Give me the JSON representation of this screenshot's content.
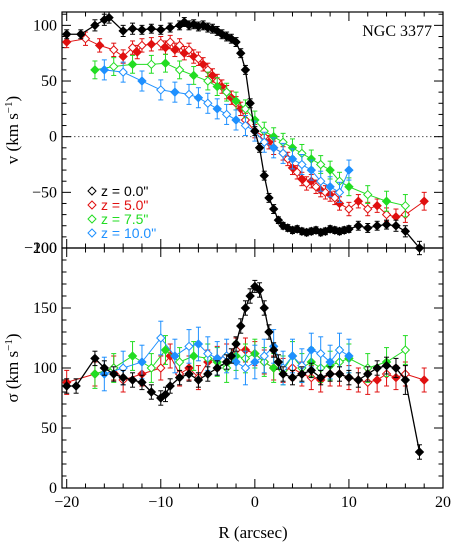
{
  "chart_data": {
    "type": "line",
    "title": "NGC 3377",
    "xlabel": "R (arcsec)",
    "xlim": [
      -20.5,
      20
    ],
    "x_ticks": [
      "−20",
      "−10",
      "0",
      "10",
      "20"
    ],
    "x_tick_values": [
      -20,
      -10,
      0,
      10,
      20
    ],
    "legend_position": "bottom-left of top panel",
    "panels": [
      {
        "id": "velocity",
        "ylabel": "v (km s",
        "ylabel_sup": "−1",
        "ylabel_close": ")",
        "ylim": [
          -100,
          112
        ],
        "y_ticks": [
          "100",
          "50",
          "0",
          "−50",
          "−100"
        ],
        "y_tick_values": [
          100,
          50,
          0,
          -50,
          -100
        ],
        "reference_line": 0,
        "series": [
          {
            "name": "z = 0.0\"",
            "color": "#000000",
            "marker": "diamond-filled",
            "x": [
              -20,
              -18.5,
              -17,
              -16,
              -15.5,
              -14,
              -13,
              -12,
              -11,
              -10,
              -9,
              -8,
              -7.5,
              -7,
              -6.5,
              -6,
              -5.5,
              -5,
              -4.5,
              -4,
              -3.5,
              -3,
              -2.5,
              -2,
              -1.5,
              -1,
              -0.5,
              0,
              0.5,
              1,
              1.5,
              2,
              2.5,
              3,
              3.5,
              4,
              4.5,
              5,
              5.5,
              6,
              6.5,
              7,
              7.5,
              8,
              8.5,
              9,
              9.5,
              10,
              11,
              12,
              13,
              14,
              15,
              16,
              17.5
            ],
            "y": [
              92,
              92,
              100,
              105,
              107,
              95,
              97,
              96,
              97,
              96,
              98,
              100,
              103,
              100,
              101,
              99,
              100,
              98,
              97,
              95,
              92,
              90,
              88,
              85,
              75,
              60,
              30,
              5,
              -10,
              -35,
              -55,
              -65,
              -75,
              -80,
              -82,
              -84,
              -83,
              -85,
              -86,
              -85,
              -84,
              -86,
              -85,
              -83,
              -84,
              -85,
              -84,
              -83,
              -80,
              -82,
              -80,
              -79,
              -80,
              -85,
              -100
            ],
            "yerr": [
              4,
              4,
              5,
              5,
              5,
              5,
              5,
              4,
              4,
              4,
              4,
              4,
              4,
              4,
              4,
              4,
              4,
              4,
              4,
              4,
              4,
              4,
              4,
              4,
              4,
              4,
              4,
              4,
              4,
              4,
              4,
              4,
              3,
              3,
              3,
              3,
              3,
              3,
              3,
              3,
              3,
              3,
              3,
              3,
              3,
              3,
              3,
              3,
              4,
              4,
              4,
              4,
              5,
              5,
              6
            ]
          },
          {
            "name": "z = 5.0\"",
            "color": "#e01010",
            "marker": "diamond-mixed",
            "x": [
              -20,
              -18,
              -16.5,
              -15,
              -14,
              -13,
              -12.5,
              -12,
              -11,
              -10,
              -9.5,
              -9,
              -8.5,
              -8,
              -7.5,
              -7,
              -6.5,
              -6,
              -5.5,
              -5,
              -4.5,
              -4,
              -3.5,
              -3,
              -2.5,
              -2,
              -1.5,
              -1,
              0,
              1,
              1.5,
              2,
              3,
              3.5,
              4,
              4.5,
              5,
              5.5,
              6,
              6.5,
              7,
              7.5,
              8,
              8.5,
              9,
              10,
              11,
              12,
              13,
              14,
              15,
              16,
              18
            ],
            "y": [
              85,
              88,
              82,
              78,
              72,
              80,
              76,
              82,
              83,
              84,
              80,
              85,
              78,
              82,
              75,
              78,
              72,
              70,
              65,
              60,
              55,
              50,
              45,
              40,
              35,
              30,
              25,
              15,
              5,
              0,
              -5,
              -10,
              -15,
              -20,
              -28,
              -32,
              -38,
              -42,
              -40,
              -45,
              -48,
              -50,
              -52,
              -55,
              -60,
              -65,
              -58,
              -65,
              -62,
              -70,
              -72,
              -70,
              -58
            ],
            "yerr": [
              5,
              6,
              6,
              6,
              6,
              6,
              6,
              6,
              6,
              6,
              6,
              6,
              6,
              6,
              6,
              6,
              6,
              6,
              6,
              6,
              6,
              6,
              6,
              6,
              6,
              6,
              6,
              6,
              6,
              6,
              6,
              6,
              6,
              6,
              6,
              6,
              6,
              6,
              6,
              6,
              6,
              6,
              6,
              6,
              6,
              6,
              6,
              6,
              6,
              6,
              7,
              7,
              8
            ]
          },
          {
            "name": "z = 7.5\"",
            "color": "#22dd22",
            "marker": "diamond-mixed",
            "x": [
              -17,
              -15,
              -13,
              -11,
              -9.5,
              -8,
              -6.5,
              -5,
              -4,
              -3,
              -2,
              -1,
              0,
              1,
              2,
              3,
              4,
              5,
              6,
              7,
              8,
              9,
              10,
              12,
              14,
              16
            ],
            "y": [
              60,
              63,
              65,
              65,
              66,
              60,
              55,
              50,
              45,
              40,
              32,
              25,
              15,
              5,
              0,
              -5,
              -10,
              -15,
              -20,
              -25,
              -30,
              -40,
              -45,
              -52,
              -58,
              -62
            ],
            "yerr": [
              8,
              8,
              8,
              8,
              8,
              8,
              8,
              8,
              8,
              8,
              8,
              8,
              8,
              8,
              8,
              8,
              8,
              8,
              8,
              8,
              8,
              8,
              8,
              8,
              9,
              10
            ]
          },
          {
            "name": "z = 10.0\"",
            "color": "#1e90ff",
            "marker": "diamond-mixed",
            "x": [
              -16,
              -14,
              -12,
              -10,
              -8.5,
              -7,
              -6,
              -5,
              -4,
              -3,
              -2,
              -1,
              0,
              1,
              2,
              3,
              4,
              5,
              6,
              7,
              8,
              9,
              10
            ],
            "y": [
              60,
              58,
              50,
              42,
              40,
              38,
              35,
              30,
              25,
              20,
              15,
              10,
              5,
              -5,
              -10,
              -15,
              -20,
              -25,
              -30,
              -40,
              -45,
              -50,
              -30
            ],
            "yerr": [
              9,
              9,
              9,
              9,
              9,
              9,
              9,
              9,
              9,
              9,
              9,
              9,
              9,
              9,
              9,
              9,
              9,
              9,
              9,
              9,
              9,
              9,
              9
            ]
          }
        ]
      },
      {
        "id": "dispersion",
        "ylabel": "σ (km s",
        "ylabel_sup": "−1",
        "ylabel_close": ")",
        "ylim": [
          0,
          200
        ],
        "y_ticks": [
          "200",
          "150",
          "100",
          "50",
          "0"
        ],
        "y_tick_values": [
          200,
          150,
          100,
          50,
          0
        ],
        "series": [
          {
            "name": "z = 0.0\"",
            "color": "#000000",
            "marker": "diamond-filled",
            "x": [
              -20,
              -19,
              -17,
              -16,
              -15,
              -14,
              -13,
              -12,
              -11,
              -10,
              -9.5,
              -9,
              -8,
              -7,
              -6,
              -5,
              -4,
              -3,
              -2.5,
              -2,
              -1.5,
              -1,
              -0.5,
              0,
              0.5,
              1,
              1.5,
              2,
              2.5,
              3,
              4,
              5,
              6,
              7,
              8,
              9,
              10,
              11,
              12,
              13,
              14,
              15,
              16,
              17.5
            ],
            "y": [
              85,
              85,
              108,
              100,
              95,
              92,
              90,
              88,
              80,
              75,
              78,
              85,
              92,
              95,
              90,
              95,
              100,
              105,
              110,
              120,
              135,
              150,
              160,
              168,
              165,
              150,
              130,
              115,
              105,
              95,
              92,
              95,
              98,
              92,
              95,
              95,
              92,
              90,
              95,
              100,
              102,
              100,
              90,
              30
            ],
            "yerr": [
              6,
              6,
              6,
              6,
              6,
              6,
              6,
              6,
              6,
              6,
              6,
              6,
              6,
              6,
              6,
              6,
              6,
              6,
              6,
              6,
              6,
              6,
              6,
              5,
              6,
              6,
              6,
              6,
              6,
              6,
              6,
              6,
              6,
              6,
              6,
              6,
              6,
              6,
              6,
              6,
              7,
              8,
              12,
              6
            ]
          },
          {
            "name": "z = 5.0\"",
            "color": "#e01010",
            "marker": "diamond-mixed",
            "x": [
              -20,
              -17,
              -15,
              -14,
              -12,
              -10,
              -9,
              -8,
              -7,
              -6,
              -5,
              -4,
              -3,
              -2,
              -1,
              0,
              1,
              2,
              3,
              4,
              5,
              6,
              7,
              8,
              9,
              10,
              11,
              12,
              13,
              14,
              15,
              16,
              18
            ],
            "y": [
              88,
              95,
              100,
              90,
              95,
              100,
              110,
              95,
              100,
              92,
              105,
              108,
              110,
              115,
              115,
              112,
              105,
              100,
              98,
              100,
              95,
              92,
              90,
              95,
              95,
              92,
              90,
              88,
              90,
              95,
              92,
              95,
              90
            ],
            "yerr": [
              10,
              10,
              10,
              10,
              10,
              10,
              10,
              10,
              10,
              10,
              10,
              10,
              10,
              10,
              10,
              10,
              10,
              10,
              10,
              10,
              10,
              10,
              10,
              10,
              10,
              10,
              10,
              10,
              10,
              10,
              10,
              10,
              10
            ]
          },
          {
            "name": "z = 7.5\"",
            "color": "#22dd22",
            "marker": "diamond-mixed",
            "x": [
              -17,
              -15,
              -13,
              -11,
              -9.5,
              -8,
              -6.5,
              -5,
              -4,
              -3,
              -2,
              -1,
              0,
              1,
              2,
              3,
              4,
              5,
              6,
              7,
              8,
              9,
              10,
              12,
              14,
              16
            ],
            "y": [
              95,
              100,
              110,
              100,
              115,
              105,
              110,
              108,
              105,
              100,
              110,
              108,
              112,
              105,
              100,
              98,
              110,
              100,
              105,
              100,
              102,
              105,
              108,
              100,
              105,
              115
            ],
            "yerr": [
              12,
              12,
              12,
              12,
              12,
              12,
              12,
              12,
              12,
              12,
              12,
              12,
              12,
              12,
              12,
              12,
              12,
              12,
              12,
              12,
              12,
              12,
              12,
              12,
              12,
              12
            ]
          },
          {
            "name": "z = 10.0\"",
            "color": "#1e90ff",
            "marker": "diamond-mixed",
            "x": [
              -16,
              -14,
              -12,
              -10,
              -8.5,
              -7,
              -6,
              -5,
              -4,
              -3,
              -2,
              -1,
              0,
              1,
              2,
              3,
              4,
              5,
              6,
              7,
              8,
              9,
              10
            ],
            "y": [
              95,
              100,
              105,
              125,
              110,
              118,
              120,
              112,
              108,
              110,
              105,
              100,
              105,
              110,
              118,
              100,
              110,
              102,
              115,
              112,
              105,
              115,
              110
            ],
            "yerr": [
              14,
              14,
              14,
              14,
              14,
              14,
              14,
              14,
              14,
              14,
              14,
              14,
              14,
              14,
              14,
              14,
              14,
              14,
              14,
              14,
              14,
              14,
              14
            ]
          }
        ]
      }
    ]
  }
}
